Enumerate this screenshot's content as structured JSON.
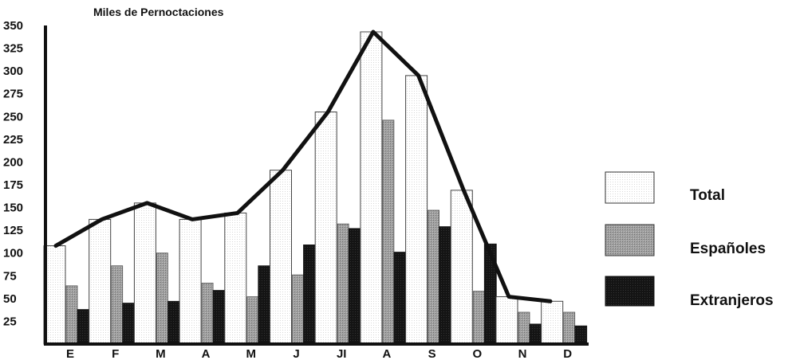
{
  "chart_data": {
    "type": "bar",
    "title": "Miles de Pernoctaciones",
    "categories": [
      "E",
      "F",
      "M",
      "A",
      "M",
      "J",
      "JI",
      "A",
      "S",
      "O",
      "N",
      "D"
    ],
    "series": [
      {
        "name": "Total",
        "values": [
          108,
          137,
          155,
          137,
          144,
          191,
          255,
          343,
          295,
          169,
          52,
          47
        ]
      },
      {
        "name": "Españoles",
        "values": [
          64,
          86,
          100,
          67,
          52,
          76,
          132,
          246,
          147,
          58,
          35,
          35
        ]
      },
      {
        "name": "Extranjeros",
        "values": [
          38,
          45,
          47,
          59,
          86,
          109,
          127,
          101,
          129,
          110,
          22,
          20
        ]
      }
    ],
    "line": {
      "series": "Total",
      "values": [
        108,
        137,
        155,
        137,
        144,
        191,
        255,
        343,
        295,
        169,
        52,
        47
      ]
    },
    "yticks": [
      "25",
      "50",
      "75",
      "100",
      "125",
      "150",
      "175",
      "200",
      "225",
      "250",
      "275",
      "300",
      "325",
      "350"
    ],
    "ylim": [
      0,
      350
    ],
    "colors": {
      "total": "#ffffff",
      "espanoles": "#9a9a9a",
      "extranjeros": "#141414",
      "line": "#111111"
    }
  }
}
